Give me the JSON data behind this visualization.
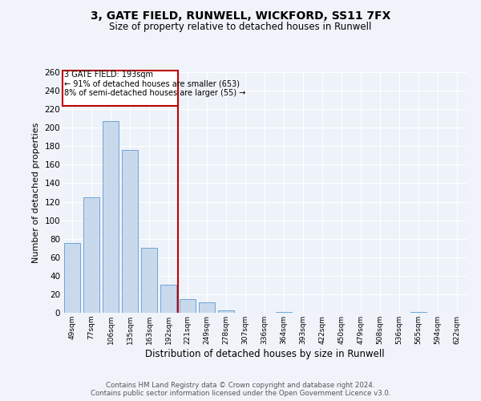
{
  "title1": "3, GATE FIELD, RUNWELL, WICKFORD, SS11 7FX",
  "title2": "Size of property relative to detached houses in Runwell",
  "xlabel": "Distribution of detached houses by size in Runwell",
  "ylabel": "Number of detached properties",
  "categories": [
    "49sqm",
    "77sqm",
    "106sqm",
    "135sqm",
    "163sqm",
    "192sqm",
    "221sqm",
    "249sqm",
    "278sqm",
    "307sqm",
    "336sqm",
    "364sqm",
    "393sqm",
    "422sqm",
    "450sqm",
    "479sqm",
    "508sqm",
    "536sqm",
    "565sqm",
    "594sqm",
    "622sqm"
  ],
  "values": [
    75,
    125,
    207,
    176,
    70,
    30,
    15,
    11,
    3,
    0,
    0,
    1,
    0,
    0,
    0,
    0,
    0,
    0,
    1,
    0,
    0
  ],
  "bar_color": "#c9d9ec",
  "bar_edge_color": "#5b9bd5",
  "property_label": "3 GATE FIELD: 193sqm",
  "annotation_line1": "← 91% of detached houses are smaller (653)",
  "annotation_line2": "8% of semi-detached houses are larger (55) →",
  "vline_color": "#c00000",
  "vline_position": 5.5,
  "ylim": [
    0,
    260
  ],
  "yticks": [
    0,
    20,
    40,
    60,
    80,
    100,
    120,
    140,
    160,
    180,
    200,
    220,
    240,
    260
  ],
  "bg_color": "#eef2f9",
  "grid_color": "#ffffff",
  "footer1": "Contains HM Land Registry data © Crown copyright and database right 2024.",
  "footer2": "Contains public sector information licensed under the Open Government Licence v3.0."
}
